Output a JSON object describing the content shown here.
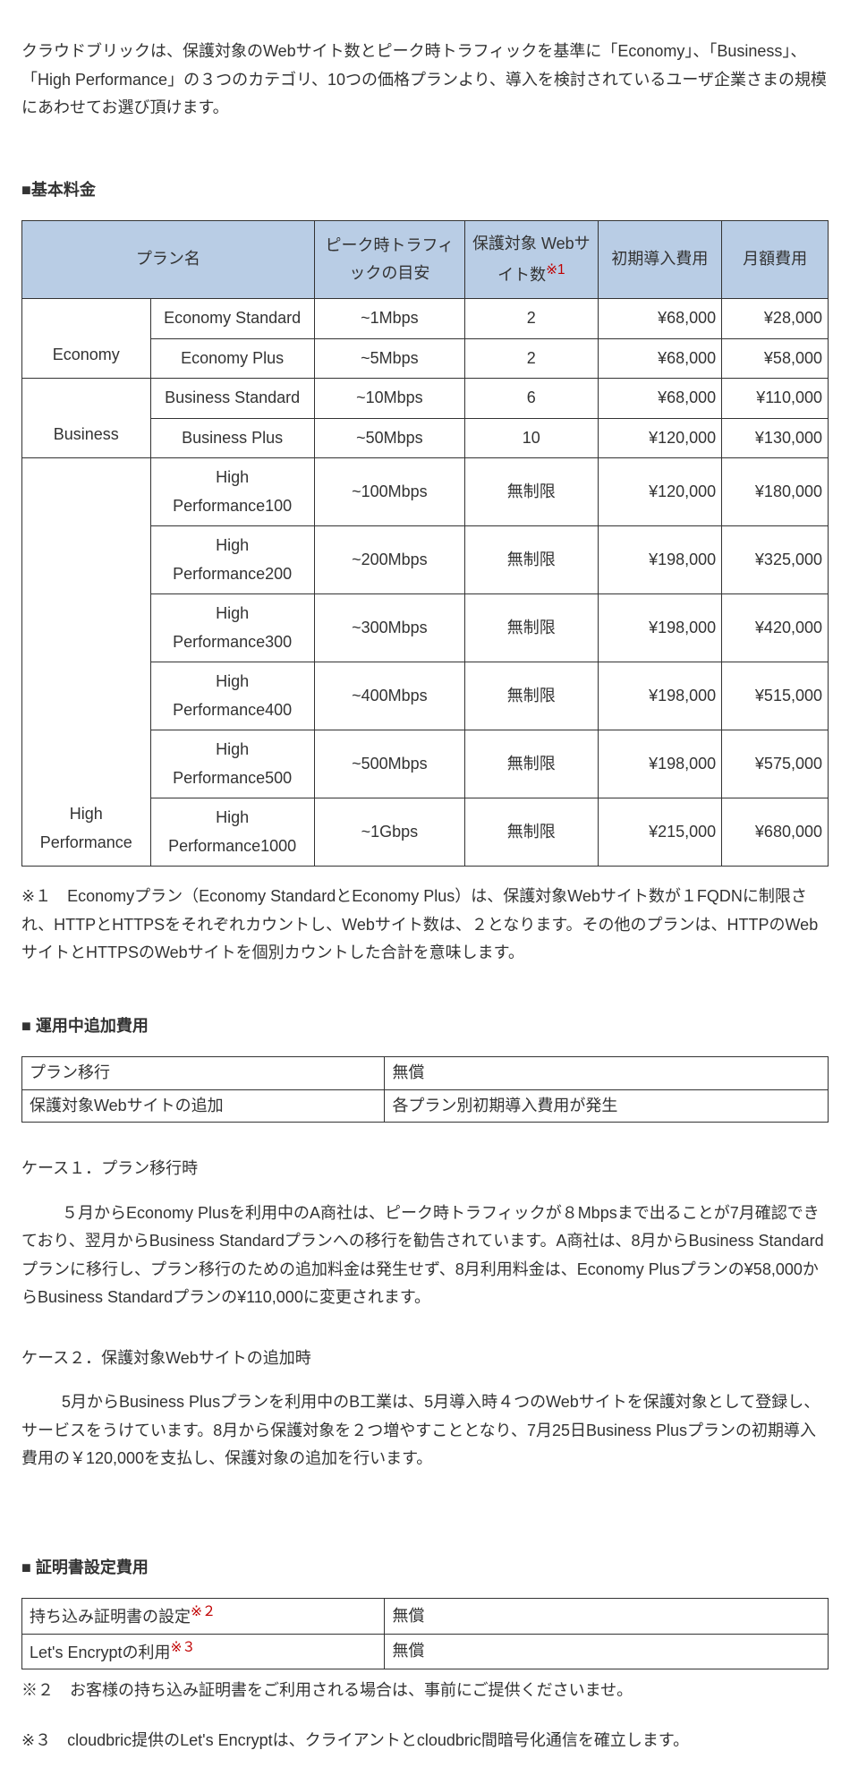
{
  "intro": "クラウドブリックは、保護対象のWebサイト数とピーク時トラフィックを基準に「Economy」、「Business」、「High Performance」の３つのカテゴリ、10つの価格プランより、導入を検討されているユーザ企業さまの規模にあわせてお選び頂けます。",
  "section_basic": "■基本料金",
  "pricing": {
    "col_widths_pct": [
      14.5,
      18.5,
      17,
      15,
      14,
      12
    ],
    "headers": {
      "plan_name": "プラン名",
      "traffic": "ピーク時トラフィックの目安",
      "sites": "保護対象 Webサイト数",
      "sites_marker": "※1",
      "setup": "初期導入費用",
      "monthly": "月額費用"
    },
    "groups": [
      {
        "category": "Economy",
        "rows": [
          {
            "plan": "Economy Standard",
            "traffic": "~1Mbps",
            "sites": "2",
            "setup": "¥68,000",
            "monthly": "¥28,000"
          },
          {
            "plan": "Economy Plus",
            "traffic": "~5Mbps",
            "sites": "2",
            "setup": "¥68,000",
            "monthly": "¥58,000"
          }
        ]
      },
      {
        "category": "Business",
        "rows": [
          {
            "plan": "Business Standard",
            "traffic": "~10Mbps",
            "sites": "6",
            "setup": "¥68,000",
            "monthly": "¥110,000"
          },
          {
            "plan": "Business Plus",
            "traffic": "~50Mbps",
            "sites": "10",
            "setup": "¥120,000",
            "monthly": "¥130,000"
          }
        ]
      },
      {
        "category": "High Performance",
        "rows": [
          {
            "plan": "High Performance100",
            "traffic": "~100Mbps",
            "sites": "無制限",
            "setup": "¥120,000",
            "monthly": "¥180,000"
          },
          {
            "plan": "High Performance200",
            "traffic": "~200Mbps",
            "sites": "無制限",
            "setup": "¥198,000",
            "monthly": "¥325,000"
          },
          {
            "plan": "High Performance300",
            "traffic": "~300Mbps",
            "sites": "無制限",
            "setup": "¥198,000",
            "monthly": "¥420,000"
          },
          {
            "plan": "High Performance400",
            "traffic": "~400Mbps",
            "sites": "無制限",
            "setup": "¥198,000",
            "monthly": "¥515,000"
          },
          {
            "plan": "High Performance500",
            "traffic": "~500Mbps",
            "sites": "無制限",
            "setup": "¥198,000",
            "monthly": "¥575,000"
          },
          {
            "plan": "High Performance1000",
            "traffic": "~1Gbps",
            "sites": "無制限",
            "setup": "¥215,000",
            "monthly": "¥680,000"
          }
        ]
      }
    ]
  },
  "footnote1": "※１　Economyプラン（Economy StandardとEconomy Plus）は、保護対象Webサイト数が１FQDNに制限され、HTTPとHTTPSをそれぞれカウントし、Webサイト数は、２となります。その他のプランは、HTTPのWebサイトとHTTPSのWebサイトを個別カウントした合計を意味します。",
  "section_add": "■ 運用中追加費用",
  "add_rows": [
    {
      "label": "プラン移行",
      "value": "無償"
    },
    {
      "label": "保護対象Webサイトの追加",
      "value": "各プラン別初期導入費用が発生"
    }
  ],
  "case1_heading": "ケース１．プラン移行時",
  "case1_body": "５月からEconomy Plusを利用中のA商社は、ピーク時トラフィックが８Mbpsまで出ることが7月確認できており、翌月からBusiness Standardプランへの移行を勧告されています。A商社は、8月からBusiness Standardプランに移行し、プラン移行のための追加料金は発生せず、8月利用料金は、Economy Plusプランの¥58,000からBusiness Standardプランの¥110,000に変更されます。",
  "case2_heading": "ケース２．保護対象Webサイトの追加時",
  "case2_body": "5月からBusiness Plusプランを利用中のB工業は、5月導入時４つのWebサイトを保護対象として登録し、サービスをうけています。8月から保護対象を２つ増やすこととなり、7月25日Business Plusプランの初期導入費用の￥120,000を支払し、保護対象の追加を行います。",
  "section_cert": "■ 証明書設定費用",
  "cert_rows": [
    {
      "label": "持ち込み証明書の設定",
      "marker": "※２",
      "value": "無償"
    },
    {
      "label": "Let's Encryptの利用",
      "marker": "※３",
      "value": "無償"
    }
  ],
  "footnote2": "※２　お客様の持ち込み証明書をご利用される場合は、事前にご提供くださいませ。",
  "footnote3": "※３　cloudbric提供のLet's Encryptは、クライアントとcloudbric間暗号化通信を確立します。"
}
